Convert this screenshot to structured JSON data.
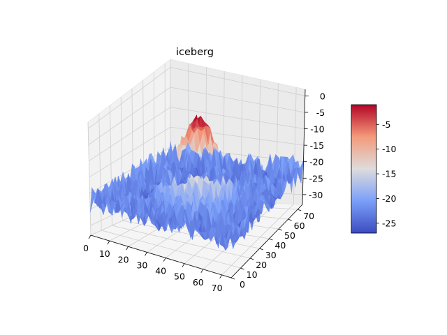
{
  "chart_data": {
    "type": "surface3d",
    "title": "iceberg",
    "colormap": "coolwarm",
    "x_ticks": [
      0,
      10,
      20,
      30,
      40,
      50,
      60,
      70
    ],
    "y_ticks": [
      0,
      10,
      20,
      30,
      40,
      50,
      60,
      70
    ],
    "z_ticks": [
      -30,
      -25,
      -20,
      -15,
      -10,
      -5,
      0
    ],
    "xlim": [
      0,
      75
    ],
    "ylim": [
      0,
      75
    ],
    "zlim": [
      -33,
      2
    ],
    "colorbar_ticks": [
      -25,
      -20,
      -15,
      -10,
      -5
    ],
    "colorbar_range": [
      -27,
      -1
    ],
    "surface": {
      "grid_size": 76,
      "baseline": -22,
      "peak_value": -1,
      "peak_center": [
        37,
        37
      ],
      "noise_amplitude": 4
    }
  }
}
